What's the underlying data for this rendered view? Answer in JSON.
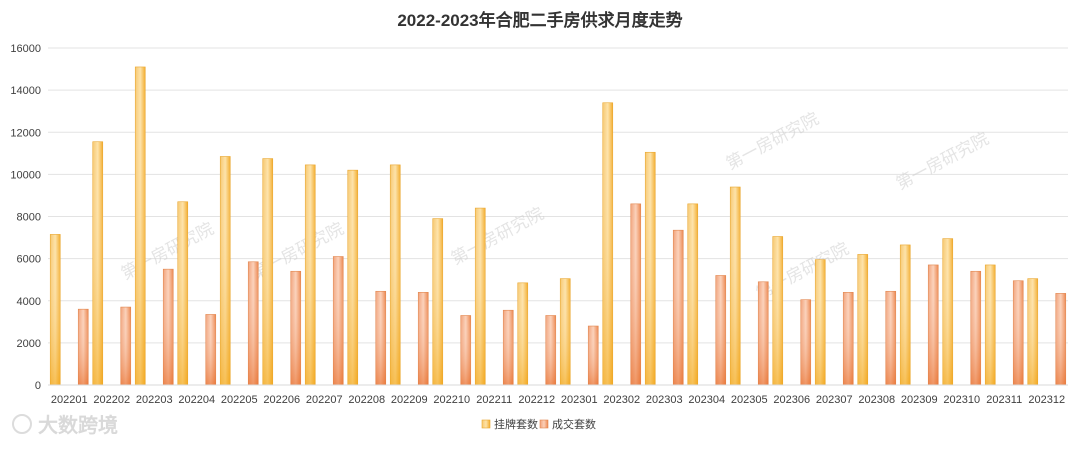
{
  "chart_data": {
    "type": "bar",
    "title": "2022-2023年合肥二手房供求月度走势",
    "xlabel": "",
    "ylabel": "",
    "ylim": [
      0,
      16000
    ],
    "y_ticks": [
      0,
      2000,
      4000,
      6000,
      8000,
      10000,
      12000,
      14000,
      16000
    ],
    "grid": true,
    "legend_position": "bottom-center",
    "categories": [
      "202201",
      "202202",
      "202203",
      "202204",
      "202205",
      "202206",
      "202207",
      "202208",
      "202209",
      "202210",
      "202211",
      "202212",
      "202301",
      "202302",
      "202303",
      "202304",
      "202305",
      "202306",
      "202307",
      "202308",
      "202309",
      "202310",
      "202311",
      "202312"
    ],
    "series": [
      {
        "name": "挂牌套数",
        "color": "#f5b942",
        "values": [
          7150,
          11550,
          15100,
          8700,
          10850,
          10750,
          10450,
          10200,
          10450,
          7900,
          8400,
          4850,
          5050,
          13400,
          11050,
          8600,
          9400,
          7050,
          5950,
          6200,
          6650,
          6950,
          5700,
          5050
        ]
      },
      {
        "name": "成交套数",
        "color": "#ee8a4a",
        "values": [
          3600,
          3700,
          5500,
          3350,
          5850,
          5400,
          6100,
          4450,
          4400,
          3300,
          3550,
          3300,
          2800,
          8600,
          7350,
          5200,
          4900,
          4050,
          4400,
          4450,
          5700,
          5400,
          4950,
          4350
        ]
      }
    ]
  },
  "watermark": {
    "text": "第一房研究院",
    "logo_text": "大数跨境"
  }
}
